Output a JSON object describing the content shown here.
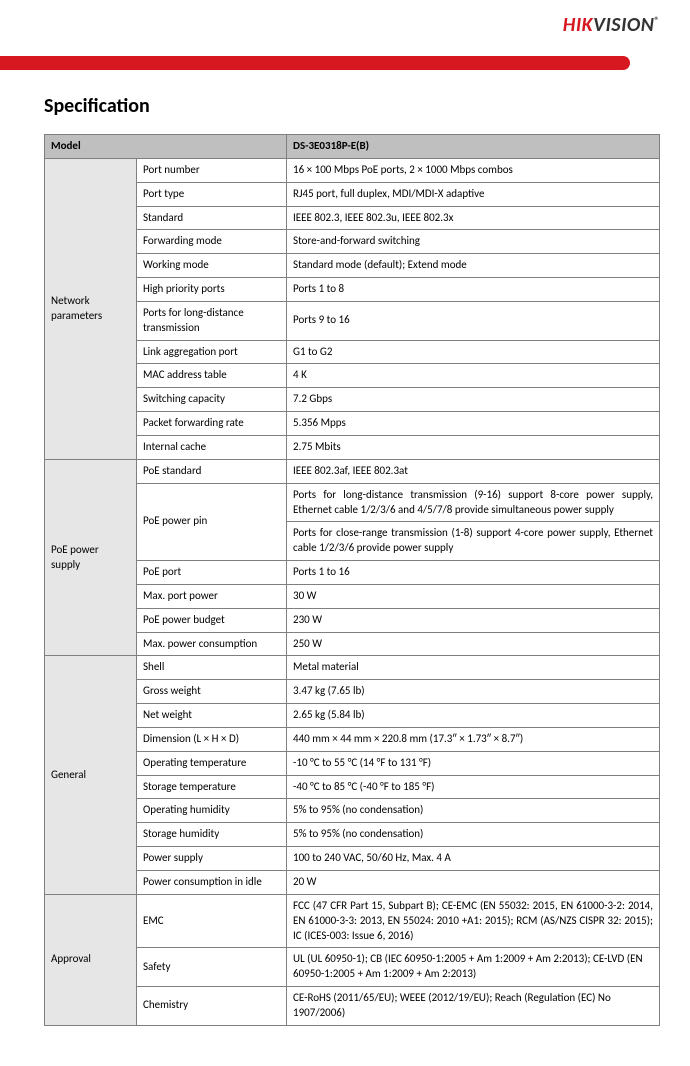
{
  "logo": {
    "part1": "HIK",
    "part2": "VISION",
    "reg": "®"
  },
  "title": "Specification",
  "modelLabel": "Model",
  "modelValue": "DS-3E0318P-E(B)",
  "sections": [
    {
      "category": "Network parameters",
      "rows": [
        {
          "label": "Port number",
          "value": "16 × 100 Mbps PoE ports, 2 × 1000 Mbps combos"
        },
        {
          "label": "Port type",
          "value": "RJ45 port, full duplex, MDI/MDI-X adaptive"
        },
        {
          "label": "Standard",
          "value": "IEEE 802.3, IEEE 802.3u, IEEE 802.3x"
        },
        {
          "label": "Forwarding mode",
          "value": "Store-and-forward switching"
        },
        {
          "label": "Working mode",
          "value": "Standard mode (default); Extend mode"
        },
        {
          "label": "High priority ports",
          "value": "Ports 1 to 8"
        },
        {
          "label": "Ports for long-distance transmission",
          "value": "Ports 9 to 16"
        },
        {
          "label": "Link aggregation port",
          "value": "G1 to G2"
        },
        {
          "label": "MAC address table",
          "value": "4 K"
        },
        {
          "label": "Switching capacity",
          "value": "7.2 Gbps"
        },
        {
          "label": "Packet forwarding rate",
          "value": "5.356 Mpps"
        },
        {
          "label": "Internal cache",
          "value": "2.75 Mbits"
        }
      ]
    },
    {
      "category": "PoE power supply",
      "rows": [
        {
          "label": "PoE standard",
          "value": "IEEE 802.3af, IEEE 802.3at"
        },
        {
          "label": "PoE power pin",
          "labelRowspan": 2,
          "value": "Ports for long-distance transmission (9-16) support 8-core power supply, Ethernet cable 1/2/3/6 and 4/5/7/8 provide simultaneous power supply",
          "justify": true
        },
        {
          "labelSkip": true,
          "value": "Ports for close-range transmission (1-8) support 4-core power supply, Ethernet cable 1/2/3/6 provide power supply",
          "justify": true
        },
        {
          "label": "PoE port",
          "value": "Ports 1 to 16"
        },
        {
          "label": "Max. port power",
          "value": "30 W"
        },
        {
          "label": "PoE power budget",
          "value": "230 W"
        },
        {
          "label": "Max. power consumption",
          "value": "250 W"
        }
      ]
    },
    {
      "category": "General",
      "rows": [
        {
          "label": "Shell",
          "value": "Metal material"
        },
        {
          "label": "Gross weight",
          "value": "3.47 kg (7.65 lb)"
        },
        {
          "label": "Net weight",
          "value": "2.65 kg (5.84 lb)"
        },
        {
          "label": "Dimension (L × H × D)",
          "value": "440 mm × 44 mm × 220.8 mm (17.3″ × 1.73″ × 8.7″)"
        },
        {
          "label": "Operating temperature",
          "value": "-10 °C to 55 °C (14 °F to 131 °F)"
        },
        {
          "label": "Storage temperature",
          "value": "-40 °C to 85 °C (-40 °F to 185 °F)"
        },
        {
          "label": "Operating humidity",
          "value": "5% to 95% (no condensation)"
        },
        {
          "label": "Storage humidity",
          "value": "5% to 95% (no condensation)"
        },
        {
          "label": "Power supply",
          "value": "100 to 240 VAC, 50/60 Hz, Max. 4 A"
        },
        {
          "label": "Power consumption in idle",
          "value": "20 W"
        }
      ]
    },
    {
      "category": "Approval",
      "rows": [
        {
          "label": "EMC",
          "value": "FCC (47 CFR Part 15, Subpart B); CE-EMC (EN 55032: 2015, EN 61000-3-2: 2014, EN 61000-3-3: 2013, EN 55024: 2010 +A1: 2015); RCM (AS/NZS CISPR 32: 2015); IC (ICES-003: Issue 6, 2016)",
          "justify": true
        },
        {
          "label": "Safety",
          "value": "UL (UL 60950-1); CB (IEC 60950-1:2005 + Am 1:2009 + Am 2:2013); CE-LVD (EN 60950-1:2005 + Am 1:2009 + Am 2:2013)"
        },
        {
          "label": "Chemistry",
          "value": "CE-RoHS (2011/65/EU); WEEE (2012/19/EU); Reach (Regulation (EC) No 1907/2006)"
        }
      ]
    }
  ]
}
